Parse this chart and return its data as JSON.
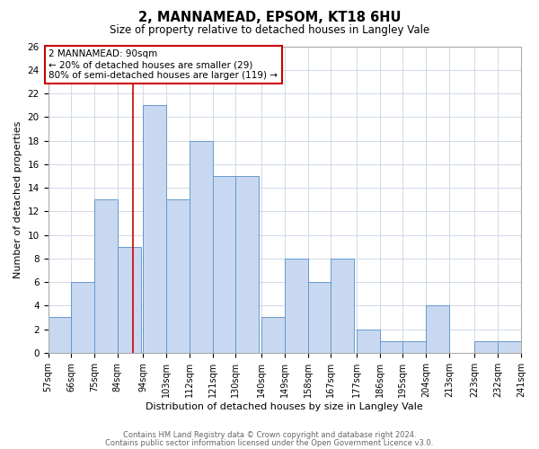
{
  "title": "2, MANNAMEAD, EPSOM, KT18 6HU",
  "subtitle": "Size of property relative to detached houses in Langley Vale",
  "xlabel": "Distribution of detached houses by size in Langley Vale",
  "ylabel": "Number of detached properties",
  "footer_line1": "Contains HM Land Registry data © Crown copyright and database right 2024.",
  "footer_line2": "Contains public sector information licensed under the Open Government Licence v3.0.",
  "bin_labels": [
    "57sqm",
    "66sqm",
    "75sqm",
    "84sqm",
    "94sqm",
    "103sqm",
    "112sqm",
    "121sqm",
    "130sqm",
    "140sqm",
    "149sqm",
    "158sqm",
    "167sqm",
    "177sqm",
    "186sqm",
    "195sqm",
    "204sqm",
    "213sqm",
    "223sqm",
    "232sqm",
    "241sqm"
  ],
  "bin_edges": [
    57,
    66,
    75,
    84,
    94,
    103,
    112,
    121,
    130,
    140,
    149,
    158,
    167,
    177,
    186,
    195,
    204,
    213,
    223,
    232,
    241
  ],
  "counts": [
    3,
    6,
    13,
    9,
    21,
    13,
    18,
    15,
    15,
    3,
    8,
    6,
    8,
    2,
    1,
    1,
    4,
    0,
    1,
    1,
    0
  ],
  "bar_color": "#c8d8f0",
  "bar_edge_color": "#6699cc",
  "property_value": 90,
  "red_line_color": "#cc0000",
  "annotation_box_color": "#cc0000",
  "annotation_text_line1": "2 MANNAMEAD: 90sqm",
  "annotation_text_line2": "← 20% of detached houses are smaller (29)",
  "annotation_text_line3": "80% of semi-detached houses are larger (119) →",
  "ylim": [
    0,
    26
  ],
  "yticks": [
    0,
    2,
    4,
    6,
    8,
    10,
    12,
    14,
    16,
    18,
    20,
    22,
    24,
    26
  ],
  "background_color": "#ffffff",
  "grid_color": "#d0d8e8"
}
